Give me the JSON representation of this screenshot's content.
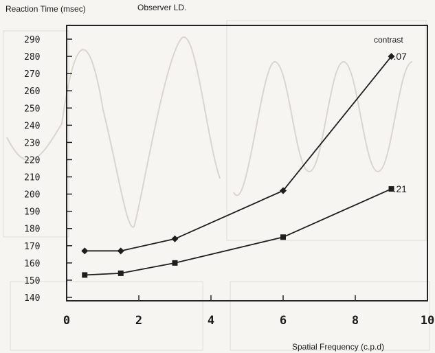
{
  "chart_data": {
    "type": "line",
    "ylabel": "Reaction Time (msec)",
    "observer": "Observer LD.",
    "xlabel": "Spatial Frequency (c.p.d)",
    "legend_title": "contrast",
    "xlim": [
      0,
      10
    ],
    "ylim": [
      140,
      290
    ],
    "xticks": [
      0,
      2,
      4,
      6,
      8,
      10
    ],
    "yticks": [
      140,
      150,
      160,
      170,
      180,
      190,
      200,
      210,
      220,
      230,
      240,
      250,
      260,
      270,
      280,
      290
    ],
    "x": [
      0.5,
      1.5,
      3,
      6,
      9
    ],
    "series": [
      {
        "name": ".07",
        "marker": "diamond",
        "values": [
          167,
          167,
          174,
          202,
          280
        ]
      },
      {
        "name": ".21",
        "marker": "square",
        "values": [
          153,
          154,
          160,
          175,
          203
        ]
      }
    ],
    "grid": false
  }
}
